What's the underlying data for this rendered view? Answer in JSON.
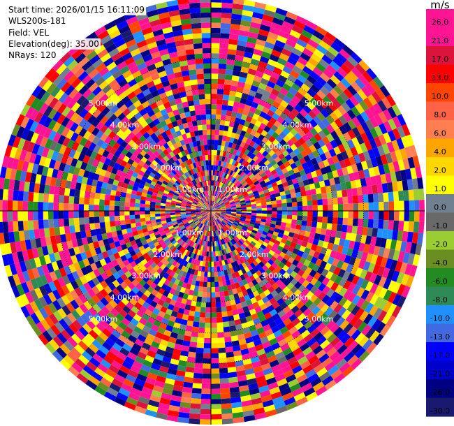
{
  "info": {
    "start_time": "Start time: 2026/01/15 16:11:09",
    "instrument": "WLS200s-181",
    "field": "Field: VEL",
    "elevation": "Elevation(deg): 35.00",
    "nrays": "NRays: 120"
  },
  "colorbar": {
    "unit": "m/s",
    "levels": [
      "26.0",
      "21.0",
      "17.0",
      "13.0",
      "10.0",
      "8.0",
      "6.0",
      "4.0",
      "2.0",
      "1.0",
      "0.0",
      "-1.0",
      "-2.0",
      "-4.0",
      "-6.0",
      "-8.0",
      "-10.0",
      "-13.0",
      "-17.0",
      "-21.0",
      "-26.0",
      "-30.0"
    ],
    "colors": [
      "#ff1493",
      "#ff1493",
      "#dc143c",
      "#ff0000",
      "#ff4500",
      "#ff6347",
      "#ff7f50",
      "#ffa500",
      "#ffd700",
      "#ffff00",
      "#708090",
      "#696969",
      "#9acd32",
      "#6b8e23",
      "#228b22",
      "#2e8b57",
      "#1e90ff",
      "#4169e1",
      "#0000ff",
      "#0000cd",
      "#000080",
      "#191970"
    ]
  },
  "chart_data": {
    "type": "ppi",
    "field": "VEL",
    "unit": "m/s",
    "n_rays": 120,
    "elevation_deg": 35.0,
    "n_gates": 42,
    "max_range_km": 7,
    "range_rings_km": [
      1,
      2,
      3,
      4,
      5
    ],
    "range_ring_labels": [
      "1.00km",
      "2.00km",
      "3.00km",
      "4.00km",
      "5.00km"
    ],
    "grid": true,
    "vmin": -30.0,
    "vmax": 26.0
  }
}
